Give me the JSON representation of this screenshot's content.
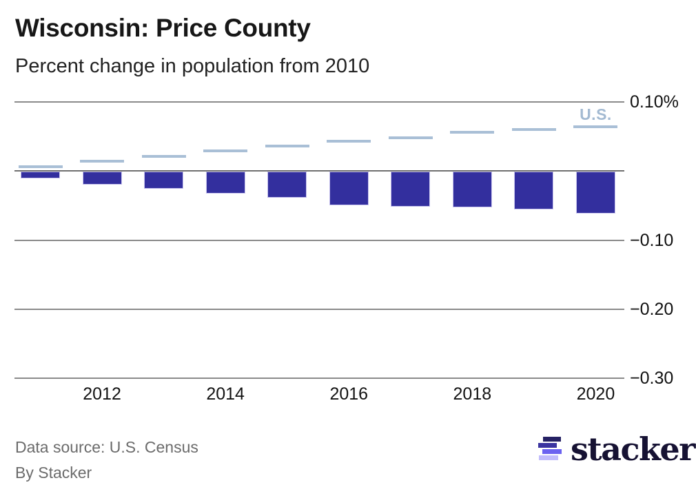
{
  "chart_data": {
    "type": "bar",
    "title": "Wisconsin: Price County",
    "subtitle": "Percent change in population from 2010",
    "categories": [
      "2011",
      "2012",
      "2013",
      "2014",
      "2015",
      "2016",
      "2017",
      "2018",
      "2019",
      "2020"
    ],
    "series": [
      {
        "name": "Price County",
        "render": "bar",
        "color": "#332f9e",
        "values": [
          -0.01,
          -0.019,
          -0.025,
          -0.032,
          -0.038,
          -0.049,
          -0.051,
          -0.052,
          -0.055,
          -0.061
        ]
      },
      {
        "name": "U.S.",
        "render": "dash-marker",
        "color": "#a9bfd6",
        "values": [
          0.006,
          0.014,
          0.021,
          0.029,
          0.036,
          0.043,
          0.048,
          0.056,
          0.06,
          0.064
        ]
      }
    ],
    "x_tick_labels": [
      "2012",
      "2014",
      "2016",
      "2018",
      "2020"
    ],
    "y_ticks": [
      {
        "value": 0.1,
        "label": "0.10%"
      },
      {
        "value": 0,
        "label": ""
      },
      {
        "value": -0.1,
        "label": "−0.10"
      },
      {
        "value": -0.2,
        "label": "−0.20"
      },
      {
        "value": -0.3,
        "label": "−0.30"
      }
    ],
    "ylim": [
      -0.3,
      0.1
    ],
    "grid": "horizontal",
    "legend_position": "inline-above-last-marker",
    "annotation": {
      "text": "U.S."
    },
    "colors": {
      "bar": "#332f9e",
      "bar_border": "#c9c5ee",
      "us_marker": "#a9bfd6",
      "us_label_text": "#a3bad2",
      "grid": "#8a8a8a",
      "zero_line": "#6f6f6f",
      "axis_text": "#111111"
    }
  },
  "footer": {
    "source": "Data source: U.S. Census",
    "byline": "By Stacker"
  },
  "logo": {
    "wordmark": "stacker",
    "icon_bar_colors": [
      "#252164",
      "#3b34a0",
      "#6b62f0",
      "#c1bcfc"
    ]
  }
}
